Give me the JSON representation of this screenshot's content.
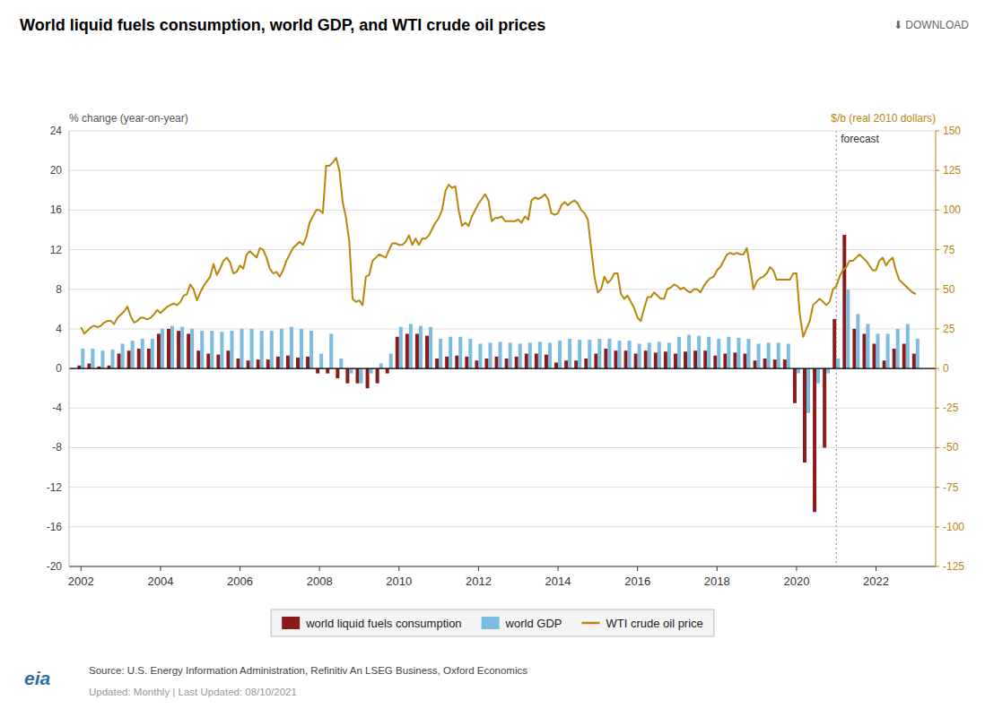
{
  "chart_data": {
    "type": "bar",
    "title": "World liquid fuels consumption, world GDP, and WTI crude oil prices",
    "y_label": "% change (year-on-year)",
    "y2_label": "$/b (real 2010 dollars)",
    "x": [
      2002.0,
      2002.25,
      2002.5,
      2002.75,
      2003.0,
      2003.25,
      2003.5,
      2003.75,
      2004.0,
      2004.25,
      2004.5,
      2004.75,
      2005.0,
      2005.25,
      2005.5,
      2005.75,
      2006.0,
      2006.25,
      2006.5,
      2006.75,
      2007.0,
      2007.25,
      2007.5,
      2007.75,
      2008.0,
      2008.25,
      2008.5,
      2008.75,
      2009.0,
      2009.25,
      2009.5,
      2009.75,
      2010.0,
      2010.25,
      2010.5,
      2010.75,
      2011.0,
      2011.25,
      2011.5,
      2011.75,
      2012.0,
      2012.25,
      2012.5,
      2012.75,
      2013.0,
      2013.25,
      2013.5,
      2013.75,
      2014.0,
      2014.25,
      2014.5,
      2014.75,
      2015.0,
      2015.25,
      2015.5,
      2015.75,
      2016.0,
      2016.25,
      2016.5,
      2016.75,
      2017.0,
      2017.25,
      2017.5,
      2017.75,
      2018.0,
      2018.25,
      2018.5,
      2018.75,
      2019.0,
      2019.25,
      2019.5,
      2019.75,
      2020.0,
      2020.25,
      2020.5,
      2020.75,
      2021.0,
      2021.25,
      2021.5,
      2021.75,
      2022.0,
      2022.25,
      2022.5,
      2022.75,
      2023.0
    ],
    "series": [
      {
        "name": "world liquid fuels consumption",
        "color": "#8B1A1A",
        "values": [
          0.3,
          0.5,
          0.2,
          0.3,
          1.5,
          1.8,
          2.0,
          2.0,
          3.5,
          4.0,
          3.8,
          3.5,
          1.8,
          1.5,
          1.4,
          1.8,
          1.0,
          0.8,
          0.9,
          0.9,
          1.2,
          1.3,
          1.1,
          1.2,
          -0.5,
          -0.5,
          -1.0,
          -1.5,
          -1.5,
          -2.0,
          -1.5,
          -0.5,
          3.2,
          3.5,
          3.5,
          3.3,
          1.0,
          1.2,
          1.3,
          1.2,
          0.8,
          1.0,
          1.2,
          1.0,
          1.2,
          1.5,
          1.5,
          1.4,
          0.6,
          0.8,
          0.8,
          1.0,
          1.5,
          2.0,
          1.8,
          1.8,
          1.5,
          1.8,
          1.6,
          1.7,
          1.5,
          1.7,
          1.8,
          1.8,
          1.3,
          1.5,
          1.6,
          1.5,
          0.8,
          1.0,
          0.9,
          0.9,
          -3.5,
          -9.5,
          -14.5,
          -8.0,
          5.0,
          13.5,
          4.0,
          3.5,
          2.5,
          0.8,
          2.0,
          2.5,
          1.5
        ]
      },
      {
        "name": "world GDP",
        "color": "#7BBDE0",
        "values": [
          2.0,
          2.0,
          1.8,
          1.9,
          2.5,
          2.8,
          3.0,
          3.0,
          4.0,
          4.3,
          4.2,
          4.0,
          3.8,
          3.8,
          3.7,
          3.8,
          4.0,
          4.0,
          3.8,
          3.8,
          4.0,
          4.2,
          4.0,
          3.8,
          1.5,
          3.5,
          1.0,
          -0.5,
          -1.5,
          -0.5,
          0.5,
          1.5,
          4.2,
          4.5,
          4.3,
          4.2,
          3.0,
          3.2,
          3.2,
          3.0,
          2.5,
          2.6,
          2.7,
          2.6,
          2.5,
          2.6,
          2.7,
          2.6,
          2.8,
          3.0,
          2.9,
          2.9,
          3.0,
          3.0,
          2.8,
          2.8,
          2.5,
          2.6,
          2.7,
          2.6,
          3.2,
          3.4,
          3.3,
          3.2,
          3.0,
          3.2,
          3.1,
          3.0,
          2.5,
          2.6,
          2.6,
          2.5,
          -0.5,
          -4.5,
          -1.5,
          -0.5,
          1.0,
          8.0,
          5.5,
          4.5,
          3.5,
          3.5,
          4.0,
          4.5,
          3.0
        ]
      },
      {
        "name": "WTI crude oil price",
        "color": "#B8860B",
        "type": "line",
        "axis": "y2",
        "x": [
          2002.0,
          2002.083,
          2002.167,
          2002.25,
          2002.333,
          2002.417,
          2002.5,
          2002.583,
          2002.667,
          2002.75,
          2002.833,
          2002.917,
          2003.0,
          2003.083,
          2003.167,
          2003.25,
          2003.333,
          2003.417,
          2003.5,
          2003.583,
          2003.667,
          2003.75,
          2003.833,
          2003.917,
          2004.0,
          2004.083,
          2004.167,
          2004.25,
          2004.333,
          2004.417,
          2004.5,
          2004.583,
          2004.667,
          2004.75,
          2004.833,
          2004.917,
          2005.0,
          2005.083,
          2005.167,
          2005.25,
          2005.333,
          2005.417,
          2005.5,
          2005.583,
          2005.667,
          2005.75,
          2005.833,
          2005.917,
          2006.0,
          2006.083,
          2006.167,
          2006.25,
          2006.333,
          2006.417,
          2006.5,
          2006.583,
          2006.667,
          2006.75,
          2006.833,
          2006.917,
          2007.0,
          2007.083,
          2007.167,
          2007.25,
          2007.333,
          2007.417,
          2007.5,
          2007.583,
          2007.667,
          2007.75,
          2007.833,
          2007.917,
          2008.0,
          2008.083,
          2008.167,
          2008.25,
          2008.333,
          2008.417,
          2008.5,
          2008.583,
          2008.667,
          2008.75,
          2008.833,
          2008.917,
          2009.0,
          2009.083,
          2009.167,
          2009.25,
          2009.333,
          2009.417,
          2009.5,
          2009.583,
          2009.667,
          2009.75,
          2009.833,
          2009.917,
          2010.0,
          2010.083,
          2010.167,
          2010.25,
          2010.333,
          2010.417,
          2010.5,
          2010.583,
          2010.667,
          2010.75,
          2010.833,
          2010.917,
          2011.0,
          2011.083,
          2011.167,
          2011.25,
          2011.333,
          2011.417,
          2011.5,
          2011.583,
          2011.667,
          2011.75,
          2011.833,
          2011.917,
          2012.0,
          2012.083,
          2012.167,
          2012.25,
          2012.333,
          2012.417,
          2012.5,
          2012.583,
          2012.667,
          2012.75,
          2012.833,
          2012.917,
          2013.0,
          2013.083,
          2013.167,
          2013.25,
          2013.333,
          2013.417,
          2013.5,
          2013.583,
          2013.667,
          2013.75,
          2013.833,
          2013.917,
          2014.0,
          2014.083,
          2014.167,
          2014.25,
          2014.333,
          2014.417,
          2014.5,
          2014.583,
          2014.667,
          2014.75,
          2014.833,
          2014.917,
          2015.0,
          2015.083,
          2015.167,
          2015.25,
          2015.333,
          2015.417,
          2015.5,
          2015.583,
          2015.667,
          2015.75,
          2015.833,
          2015.917,
          2016.0,
          2016.083,
          2016.167,
          2016.25,
          2016.333,
          2016.417,
          2016.5,
          2016.583,
          2016.667,
          2016.75,
          2016.833,
          2016.917,
          2017.0,
          2017.083,
          2017.167,
          2017.25,
          2017.333,
          2017.417,
          2017.5,
          2017.583,
          2017.667,
          2017.75,
          2017.833,
          2017.917,
          2018.0,
          2018.083,
          2018.167,
          2018.25,
          2018.333,
          2018.417,
          2018.5,
          2018.583,
          2018.667,
          2018.75,
          2018.833,
          2018.917,
          2019.0,
          2019.083,
          2019.167,
          2019.25,
          2019.333,
          2019.417,
          2019.5,
          2019.583,
          2019.667,
          2019.75,
          2019.833,
          2019.917,
          2020.0,
          2020.083,
          2020.167,
          2020.25,
          2020.333,
          2020.417,
          2020.5,
          2020.583,
          2020.667,
          2020.75,
          2020.833,
          2020.917,
          2021.0,
          2021.083,
          2021.167,
          2021.25,
          2021.333,
          2021.417,
          2021.5,
          2021.583,
          2021.667,
          2021.75,
          2021.833,
          2021.917,
          2022.0,
          2022.083,
          2022.167,
          2022.25,
          2022.333,
          2022.417,
          2022.5,
          2022.583,
          2022.667,
          2022.75,
          2022.833,
          2022.917,
          2023.0
        ],
        "values": [
          26,
          22,
          24,
          26,
          27,
          26,
          27,
          29,
          30,
          30,
          28,
          32,
          34,
          36,
          39,
          33,
          29,
          30,
          32,
          32,
          31,
          32,
          34,
          37,
          35,
          37,
          39,
          40,
          41,
          40,
          42,
          46,
          47,
          53,
          50,
          43,
          48,
          52,
          55,
          58,
          66,
          59,
          63,
          68,
          70,
          67,
          60,
          61,
          65,
          63,
          72,
          74,
          72,
          70,
          76,
          75,
          70,
          63,
          60,
          61,
          58,
          62,
          68,
          72,
          76,
          78,
          80,
          78,
          83,
          92,
          96,
          100,
          100,
          98,
          128,
          128,
          130,
          133,
          125,
          105,
          95,
          80,
          44,
          42,
          43,
          40,
          58,
          59,
          68,
          70,
          72,
          71,
          70,
          75,
          79,
          79,
          78,
          78,
          80,
          84,
          78,
          82,
          78,
          82,
          82,
          84,
          88,
          92,
          95,
          100,
          112,
          116,
          114,
          115,
          100,
          90,
          92,
          90,
          96,
          100,
          104,
          107,
          110,
          106,
          93,
          95,
          95,
          96,
          93,
          93,
          93,
          93,
          94,
          92,
          96,
          94,
          106,
          108,
          107,
          108,
          110,
          107,
          98,
          97,
          98,
          103,
          105,
          103,
          105,
          106,
          104,
          100,
          98,
          94,
          76,
          58,
          48,
          50,
          58,
          54,
          56,
          60,
          60,
          47,
          44,
          46,
          42,
          38,
          32,
          30,
          38,
          45,
          45,
          48,
          46,
          44,
          44,
          50,
          51,
          53,
          52,
          50,
          51,
          49,
          48,
          50,
          50,
          48,
          52,
          55,
          57,
          58,
          62,
          64,
          68,
          72,
          73,
          72,
          73,
          72,
          72,
          76,
          64,
          50,
          55,
          57,
          58,
          60,
          64,
          62,
          56,
          56,
          56,
          56,
          56,
          60,
          60,
          34,
          20,
          25,
          30,
          40,
          42,
          44,
          42,
          40,
          42,
          50,
          52,
          58,
          62,
          64,
          68,
          68,
          70,
          72,
          70,
          68,
          65,
          62,
          62,
          68,
          70,
          65,
          68,
          70,
          62,
          56,
          54,
          52,
          50,
          48,
          47
        ]
      }
    ],
    "xlim": [
      2001.7,
      2023.5
    ],
    "xticks": [
      2002,
      2004,
      2006,
      2008,
      2010,
      2012,
      2014,
      2016,
      2018,
      2020,
      2022
    ],
    "ylim": [
      -20,
      24
    ],
    "yticks": [
      -20,
      -16,
      -12,
      -8,
      -4,
      0,
      4,
      8,
      12,
      16,
      20,
      24
    ],
    "y2lim": [
      -125,
      150
    ],
    "y2ticks": [
      -125,
      -100,
      -75,
      -50,
      -25,
      0,
      25,
      50,
      75,
      100,
      125,
      150
    ],
    "grid": true,
    "legend": "bottom",
    "annotations": [
      {
        "text": "forecast",
        "x": 2021.0
      },
      {
        "text": "⬇  DOWNLOAD"
      },
      {
        "text": "Source: U.S. Energy Information Administration, Refinitiv An LSEG Business, Oxford Economics"
      },
      {
        "text": "Updated: Monthly | Last Updated: 08/10/2021"
      },
      {
        "text": "eia"
      }
    ]
  }
}
